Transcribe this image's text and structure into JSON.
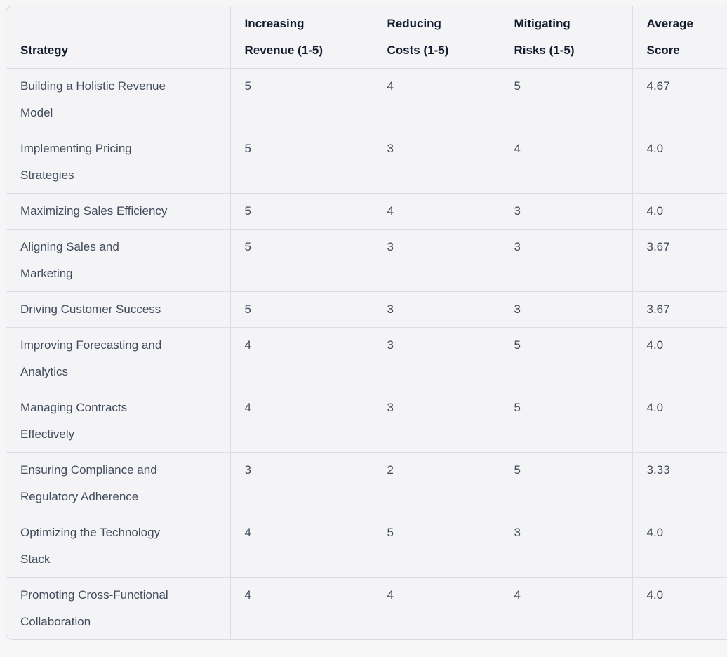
{
  "table": {
    "columns": [
      {
        "key": "strategy",
        "label": "Strategy"
      },
      {
        "key": "increasing_revenue",
        "label": "Increasing\nRevenue (1-5)"
      },
      {
        "key": "reducing_costs",
        "label": "Reducing\nCosts (1-5)"
      },
      {
        "key": "mitigating_risks",
        "label": "Mitigating\nRisks (1-5)"
      },
      {
        "key": "average_score",
        "label": "Average\nScore"
      }
    ],
    "rows": [
      {
        "strategy": "Building a Holistic Revenue\nModel",
        "increasing_revenue": "5",
        "reducing_costs": "4",
        "mitigating_risks": "5",
        "average_score": "4.67"
      },
      {
        "strategy": "Implementing Pricing\nStrategies",
        "increasing_revenue": "5",
        "reducing_costs": "3",
        "mitigating_risks": "4",
        "average_score": "4.0"
      },
      {
        "strategy": "Maximizing Sales Efficiency",
        "increasing_revenue": "5",
        "reducing_costs": "4",
        "mitigating_risks": "3",
        "average_score": "4.0"
      },
      {
        "strategy": "Aligning Sales and\nMarketing",
        "increasing_revenue": "5",
        "reducing_costs": "3",
        "mitigating_risks": "3",
        "average_score": "3.67"
      },
      {
        "strategy": "Driving Customer Success",
        "increasing_revenue": "5",
        "reducing_costs": "3",
        "mitigating_risks": "3",
        "average_score": "3.67"
      },
      {
        "strategy": "Improving Forecasting and\nAnalytics",
        "increasing_revenue": "4",
        "reducing_costs": "3",
        "mitigating_risks": "5",
        "average_score": "4.0"
      },
      {
        "strategy": "Managing Contracts\nEffectively",
        "increasing_revenue": "4",
        "reducing_costs": "3",
        "mitigating_risks": "5",
        "average_score": "4.0"
      },
      {
        "strategy": "Ensuring Compliance and\nRegulatory Adherence",
        "increasing_revenue": "3",
        "reducing_costs": "2",
        "mitigating_risks": "5",
        "average_score": "3.33"
      },
      {
        "strategy": "Optimizing the Technology\nStack",
        "increasing_revenue": "4",
        "reducing_costs": "5",
        "mitigating_risks": "3",
        "average_score": "4.0"
      },
      {
        "strategy": "Promoting Cross-Functional\nCollaboration",
        "increasing_revenue": "4",
        "reducing_costs": "4",
        "mitigating_risks": "4",
        "average_score": "4.0"
      }
    ]
  },
  "colors": {
    "page_background": "#f6f6f7",
    "table_background": "#f4f4f6",
    "border": "#dcdde5",
    "outer_border": "#d9dae2",
    "header_text": "#121c2e",
    "body_text": "#414b5c"
  }
}
